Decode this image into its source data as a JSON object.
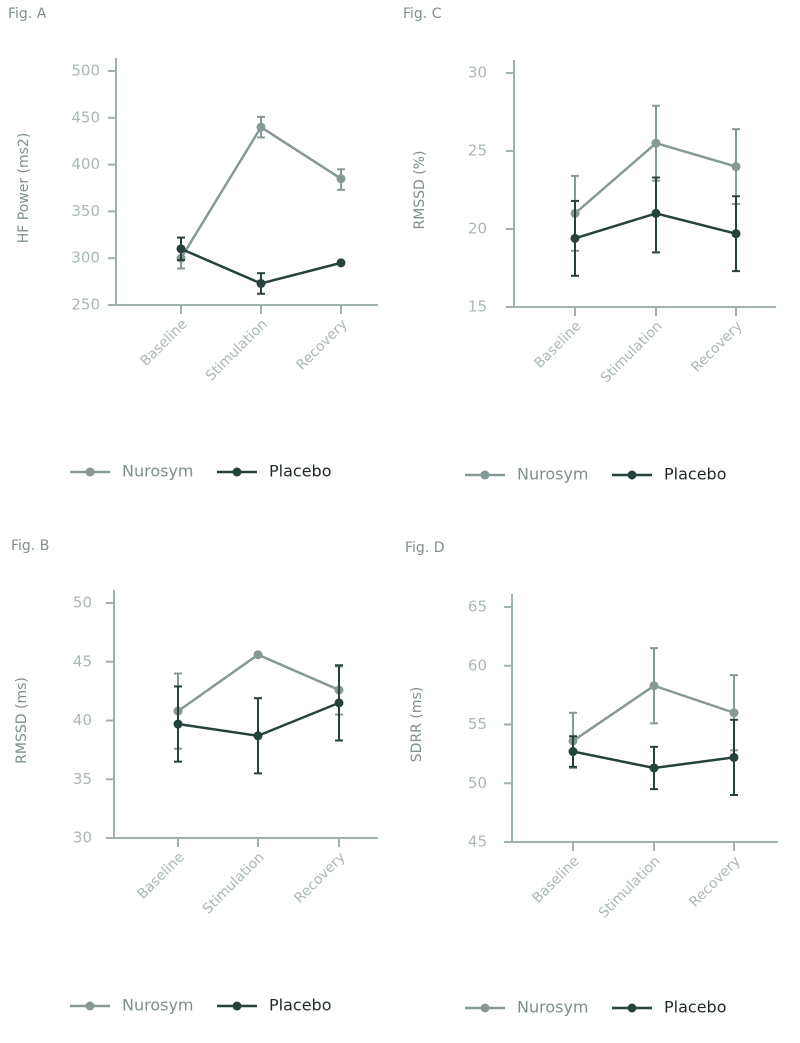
{
  "colors": {
    "nurosym": "#879996",
    "placebo": "#27423d",
    "axis": "#9fb2ae",
    "tick_text": "#a9b8b5",
    "label_text": "#7f8f8c",
    "legend_text": "#1f2a28"
  },
  "chart_data": [
    {
      "id": "A",
      "type": "line",
      "fig_label": "Fig. A",
      "ylabel": "HF Power (ms2)",
      "categories": [
        "Baseline",
        "Stimulation",
        "Recovery"
      ],
      "ylim": [
        250,
        500
      ],
      "yticks": [
        250,
        300,
        350,
        400,
        450,
        500
      ],
      "series": [
        {
          "name": "Nurosym",
          "color_key": "nurosym",
          "values": [
            300,
            440,
            385
          ],
          "err_low": [
            289,
            429,
            373
          ],
          "err_high": [
            310,
            451,
            395
          ]
        },
        {
          "name": "Placebo",
          "color_key": "placebo",
          "values": [
            310,
            273,
            295
          ],
          "err_low": [
            298,
            262,
            null
          ],
          "err_high": [
            322,
            284,
            null
          ]
        }
      ]
    },
    {
      "id": "C",
      "type": "line",
      "fig_label": "Fig. C",
      "ylabel": "RMSSD (%)",
      "categories": [
        "Baseline",
        "Stimulation",
        "Recovery"
      ],
      "ylim": [
        15,
        30
      ],
      "yticks": [
        15,
        20,
        25,
        30
      ],
      "series": [
        {
          "name": "Nurosym",
          "color_key": "nurosym",
          "values": [
            21.0,
            25.5,
            24.0
          ],
          "err_low": [
            18.6,
            23.1,
            21.6
          ],
          "err_high": [
            23.4,
            27.9,
            26.4
          ]
        },
        {
          "name": "Placebo",
          "color_key": "placebo",
          "values": [
            19.4,
            21.0,
            19.7
          ],
          "err_low": [
            17.0,
            18.5,
            17.3
          ],
          "err_high": [
            21.8,
            23.3,
            22.1
          ]
        }
      ]
    },
    {
      "id": "B",
      "type": "line",
      "fig_label": "Fig. B",
      "ylabel": "RMSSD (ms)",
      "categories": [
        "Baseline",
        "Stimulation",
        "Recovery"
      ],
      "ylim": [
        30,
        50
      ],
      "yticks": [
        30,
        35,
        40,
        45,
        50
      ],
      "series": [
        {
          "name": "Nurosym",
          "color_key": "nurosym",
          "values": [
            40.8,
            45.6,
            42.6
          ],
          "err_low": [
            37.6,
            null,
            40.5
          ],
          "err_high": [
            44.0,
            null,
            44.6
          ]
        },
        {
          "name": "Placebo",
          "color_key": "placebo",
          "values": [
            39.7,
            38.7,
            41.5
          ],
          "err_low": [
            36.5,
            35.5,
            38.3
          ],
          "err_high": [
            42.9,
            41.9,
            44.7
          ]
        }
      ]
    },
    {
      "id": "D",
      "type": "line",
      "fig_label": "Fig. D",
      "ylabel": "SDRR (ms)",
      "categories": [
        "Baseline",
        "Stimulation",
        "Recovery"
      ],
      "ylim": [
        45,
        65
      ],
      "yticks": [
        45,
        50,
        55,
        60,
        65
      ],
      "series": [
        {
          "name": "Nurosym",
          "color_key": "nurosym",
          "values": [
            53.6,
            58.3,
            56.0
          ],
          "err_low": [
            51.3,
            55.1,
            52.8
          ],
          "err_high": [
            56.0,
            61.5,
            59.2
          ]
        },
        {
          "name": "Placebo",
          "color_key": "placebo",
          "values": [
            52.7,
            51.3,
            52.2
          ],
          "err_low": [
            51.4,
            49.5,
            49.0
          ],
          "err_high": [
            54.0,
            53.1,
            55.4
          ]
        }
      ]
    }
  ]
}
